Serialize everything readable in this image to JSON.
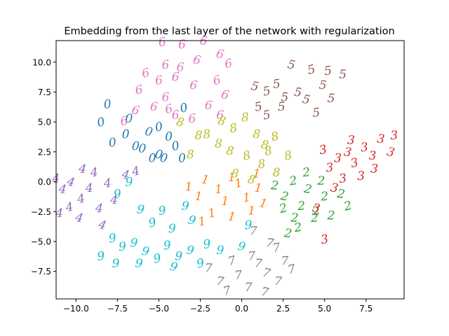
{
  "chart_data": {
    "type": "scatter",
    "title": "Embedding from the last layer of the network with regularization",
    "xlabel": "",
    "ylabel": "",
    "xlim": [
      -11.2,
      9.8
    ],
    "ylim": [
      -9.8,
      11.8
    ],
    "xticks": [
      -10.0,
      -7.5,
      -5.0,
      -2.5,
      0.0,
      2.5,
      5.0,
      7.5
    ],
    "xtick_labels": [
      "−10.0",
      "−7.5",
      "−5.0",
      "−2.5",
      "0.0",
      "2.5",
      "5.0",
      "7.5"
    ],
    "yticks": [
      -7.5,
      -5.0,
      -2.5,
      0.0,
      2.5,
      5.0,
      7.5,
      10.0
    ],
    "ytick_labels": [
      "−7.5",
      "−5.0",
      "−2.5",
      "0.0",
      "2.5",
      "5.0",
      "7.5",
      "10.0"
    ],
    "grid": false,
    "markers": "handwritten digit images",
    "series": [
      {
        "digit": "0",
        "color": "#1f77b4",
        "points": [
          [
            -8.5,
            5.0
          ],
          [
            -7.8,
            3.3
          ],
          [
            -7.0,
            4.0
          ],
          [
            -6.4,
            3.0
          ],
          [
            -5.6,
            4.2
          ],
          [
            -5.0,
            4.6
          ],
          [
            -4.4,
            3.8
          ],
          [
            -6.0,
            2.8
          ],
          [
            -5.0,
            2.3
          ],
          [
            -4.0,
            3.0
          ],
          [
            -3.6,
            2.0
          ],
          [
            -6.8,
            5.3
          ],
          [
            -4.7,
            2.0
          ],
          [
            -3.5,
            6.2
          ],
          [
            -8.1,
            6.5
          ],
          [
            -5.4,
            2.0
          ]
        ]
      },
      {
        "digit": "1",
        "color": "#ff7f0e",
        "points": [
          [
            -3.2,
            -0.4
          ],
          [
            -2.6,
            -1.2
          ],
          [
            -2.2,
            0.2
          ],
          [
            -1.8,
            -2.6
          ],
          [
            -1.4,
            -0.6
          ],
          [
            -1.0,
            -1.6
          ],
          [
            -0.6,
            -2.9
          ],
          [
            -0.2,
            -0.1
          ],
          [
            0.3,
            -1.3
          ],
          [
            0.6,
            -2.4
          ],
          [
            1.0,
            -0.5
          ],
          [
            1.3,
            -1.8
          ],
          [
            -2.4,
            -3.3
          ],
          [
            -0.6,
            0.4
          ],
          [
            0.9,
            0.7
          ]
        ]
      },
      {
        "digit": "2",
        "color": "#2ca02c",
        "points": [
          [
            2.0,
            -0.3
          ],
          [
            2.6,
            -1.2
          ],
          [
            3.1,
            0.1
          ],
          [
            3.6,
            -2.0
          ],
          [
            3.2,
            -3.0
          ],
          [
            4.0,
            -0.6
          ],
          [
            4.5,
            -2.4
          ],
          [
            5.0,
            -1.2
          ],
          [
            5.4,
            -2.8
          ],
          [
            6.0,
            -1.0
          ],
          [
            6.4,
            -2.0
          ],
          [
            3.9,
            0.8
          ],
          [
            4.8,
            0.1
          ],
          [
            2.8,
            -4.3
          ],
          [
            2.5,
            -2.2
          ],
          [
            3.4,
            -3.8
          ],
          [
            4.4,
            -3.0
          ]
        ]
      },
      {
        "digit": "3",
        "color": "#d62728",
        "points": [
          [
            4.9,
            2.7
          ],
          [
            5.3,
            1.2
          ],
          [
            5.8,
            2.0
          ],
          [
            6.4,
            2.5
          ],
          [
            6.8,
            1.6
          ],
          [
            7.4,
            2.9
          ],
          [
            7.9,
            2.2
          ],
          [
            8.4,
            3.6
          ],
          [
            9.0,
            2.5
          ],
          [
            6.1,
            0.3
          ],
          [
            7.2,
            0.5
          ],
          [
            8.0,
            1.1
          ],
          [
            4.5,
            -2.2
          ],
          [
            5.0,
            -4.8
          ],
          [
            9.2,
            3.9
          ],
          [
            6.6,
            3.5
          ],
          [
            5.6,
            -0.5
          ]
        ]
      },
      {
        "digit": "4",
        "color": "#9467bd",
        "points": [
          [
            -11.2,
            0.3
          ],
          [
            -10.8,
            -0.6
          ],
          [
            -10.3,
            0.0
          ],
          [
            -9.7,
            -1.4
          ],
          [
            -9.2,
            -0.5
          ],
          [
            -8.6,
            -2.2
          ],
          [
            -9.8,
            -3.0
          ],
          [
            -10.4,
            -2.1
          ],
          [
            -8.1,
            -0.1
          ],
          [
            -7.7,
            -1.5
          ],
          [
            -7.0,
            0.6
          ],
          [
            -6.4,
            0.9
          ],
          [
            -8.9,
            0.8
          ],
          [
            -11.0,
            -2.6
          ],
          [
            -9.6,
            1.1
          ],
          [
            -8.4,
            -3.6
          ]
        ]
      },
      {
        "digit": "5",
        "color": "#8c564b",
        "points": [
          [
            0.8,
            8.0
          ],
          [
            1.5,
            7.6
          ],
          [
            2.1,
            8.2
          ],
          [
            2.6,
            7.1
          ],
          [
            3.4,
            7.5
          ],
          [
            4.2,
            9.4
          ],
          [
            5.2,
            9.3
          ],
          [
            6.1,
            9.0
          ],
          [
            4.9,
            8.1
          ],
          [
            3.9,
            6.9
          ],
          [
            1.5,
            5.6
          ],
          [
            2.4,
            6.3
          ],
          [
            5.4,
            7.0
          ],
          [
            3.0,
            9.8
          ],
          [
            1.0,
            6.3
          ],
          [
            4.5,
            5.8
          ]
        ]
      },
      {
        "digit": "6",
        "color": "#e377c2",
        "points": [
          [
            -4.8,
            11.7
          ],
          [
            -3.6,
            11.5
          ],
          [
            -2.3,
            11.8
          ],
          [
            -1.3,
            10.7
          ],
          [
            -0.8,
            9.9
          ],
          [
            -4.6,
            9.8
          ],
          [
            -3.7,
            9.6
          ],
          [
            -2.7,
            10.2
          ],
          [
            -5.8,
            9.1
          ],
          [
            -5.0,
            8.5
          ],
          [
            -4.0,
            8.8
          ],
          [
            -2.9,
            8.1
          ],
          [
            -1.5,
            8.5
          ],
          [
            -6.2,
            7.7
          ],
          [
            -4.6,
            7.1
          ],
          [
            -5.3,
            6.3
          ],
          [
            -6.4,
            6.0
          ],
          [
            -7.1,
            5.1
          ],
          [
            -4.0,
            5.6
          ],
          [
            -2.0,
            6.4
          ],
          [
            -1.0,
            7.3
          ],
          [
            -4.4,
            6.1
          ],
          [
            -3.0,
            5.3
          ],
          [
            -1.3,
            5.6
          ]
        ]
      },
      {
        "digit": "7",
        "color": "#7f7f7f",
        "points": [
          [
            -2.0,
            -7.2
          ],
          [
            -1.3,
            -8.3
          ],
          [
            -0.6,
            -6.6
          ],
          [
            -0.2,
            -7.8
          ],
          [
            0.4,
            -8.8
          ],
          [
            1.0,
            -6.8
          ],
          [
            1.5,
            -7.6
          ],
          [
            2.1,
            -5.5
          ],
          [
            2.6,
            -6.6
          ],
          [
            2.2,
            -8.3
          ],
          [
            1.4,
            -9.2
          ],
          [
            3.0,
            -7.3
          ],
          [
            0.6,
            -6.2
          ],
          [
            0.7,
            -4.1
          ],
          [
            1.7,
            -5.1
          ],
          [
            -0.9,
            -9.1
          ]
        ]
      },
      {
        "digit": "8",
        "color": "#bcbd22",
        "points": [
          [
            -1.2,
            5.1
          ],
          [
            -0.5,
            4.5
          ],
          [
            0.2,
            5.4
          ],
          [
            0.9,
            4.0
          ],
          [
            1.4,
            3.1
          ],
          [
            2.0,
            3.8
          ],
          [
            -2.1,
            4.0
          ],
          [
            -1.4,
            3.2
          ],
          [
            -0.7,
            2.6
          ],
          [
            0.3,
            2.2
          ],
          [
            1.2,
            1.5
          ],
          [
            2.1,
            0.8
          ],
          [
            -0.4,
            0.7
          ],
          [
            0.6,
            0.2
          ],
          [
            1.6,
            2.6
          ],
          [
            -3.1,
            2.3
          ],
          [
            -2.6,
            3.9
          ],
          [
            -3.7,
            5.0
          ],
          [
            2.8,
            2.2
          ]
        ]
      },
      {
        "digit": "9",
        "color": "#17becf",
        "points": [
          [
            -7.5,
            -1.0
          ],
          [
            -6.8,
            0.0
          ],
          [
            -6.1,
            -2.3
          ],
          [
            -5.4,
            -3.4
          ],
          [
            -4.8,
            -2.4
          ],
          [
            -4.2,
            -3.9
          ],
          [
            -3.4,
            -2.0
          ],
          [
            -3.0,
            -3.2
          ],
          [
            -7.8,
            -4.7
          ],
          [
            -7.2,
            -5.4
          ],
          [
            -6.5,
            -5.1
          ],
          [
            -5.8,
            -5.8
          ],
          [
            -5.1,
            -6.4
          ],
          [
            -4.5,
            -5.3
          ],
          [
            -3.8,
            -6.2
          ],
          [
            -3.1,
            -5.7
          ],
          [
            -2.5,
            -6.8
          ],
          [
            -8.5,
            -6.2
          ],
          [
            -7.6,
            -6.8
          ],
          [
            -6.2,
            -6.8
          ],
          [
            -4.1,
            -7.1
          ],
          [
            -2.1,
            -5.2
          ],
          [
            0.4,
            -3.6
          ],
          [
            -1.3,
            -5.7
          ],
          [
            0.0,
            -5.4
          ]
        ]
      }
    ]
  }
}
